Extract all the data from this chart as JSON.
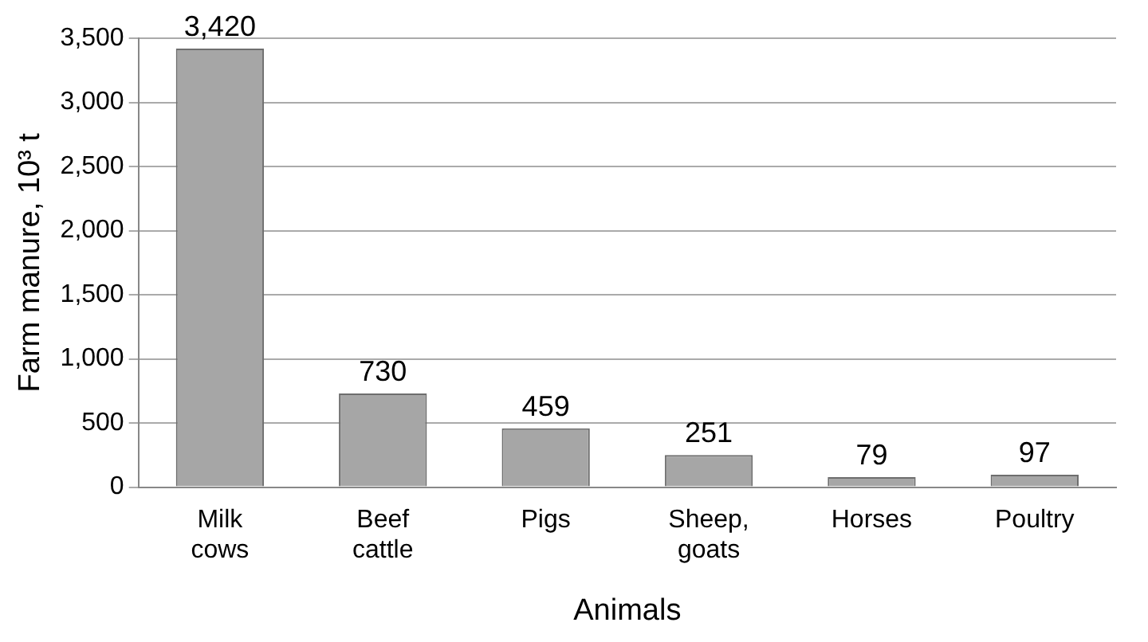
{
  "chart_data": {
    "type": "bar",
    "xlabel": "Animals",
    "ylabel": "Farm manure, 10³ t",
    "categories": [
      "Milk cows",
      "Beef cattle",
      "Pigs",
      "Sheep, goats",
      "Horses",
      "Poultry"
    ],
    "values": [
      3420,
      730,
      459,
      251,
      79,
      97
    ],
    "value_labels": [
      "3,420",
      "730",
      "459",
      "251",
      "79",
      "97"
    ],
    "color": "#a6a6a6",
    "ylim": [
      0,
      3500
    ],
    "yticks": [
      {
        "value": 0,
        "label": "0"
      },
      {
        "value": 500,
        "label": "500"
      },
      {
        "value": 1000,
        "label": "1,000"
      },
      {
        "value": 1500,
        "label": "1,500"
      },
      {
        "value": 2000,
        "label": "2,000"
      },
      {
        "value": 2500,
        "label": "2,500"
      },
      {
        "value": 3000,
        "label": "3,000"
      },
      {
        "value": 3500,
        "label": "3,500"
      }
    ],
    "grid": "y",
    "legend": false
  }
}
